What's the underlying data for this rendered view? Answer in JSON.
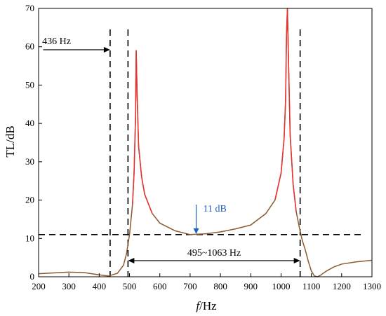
{
  "chart_data": {
    "type": "line",
    "xlabel_italic": "f",
    "xlabel_rest": "/Hz",
    "ylabel": "TL/dB",
    "xlim": [
      200,
      1300
    ],
    "ylim": [
      0,
      70
    ],
    "xticks": [
      200,
      300,
      400,
      500,
      600,
      700,
      800,
      900,
      1000,
      1100,
      1200,
      1300
    ],
    "yticks": [
      0,
      10,
      20,
      30,
      40,
      50,
      60,
      70
    ],
    "grid": false,
    "series": [
      {
        "color": "#8B5A2B",
        "peak_color": "#e8312f",
        "x": [
          200,
          250,
          300,
          350,
          400,
          430,
          460,
          480,
          490,
          500,
          510,
          515,
          520,
          522,
          525,
          530,
          540,
          550,
          575,
          600,
          650,
          700,
          750,
          800,
          850,
          900,
          950,
          980,
          1000,
          1010,
          1015,
          1018,
          1021,
          1025,
          1030,
          1040,
          1050,
          1060,
          1070,
          1080,
          1090,
          1100,
          1110,
          1120,
          1130,
          1150,
          1175,
          1200,
          1250,
          1300
        ],
        "y": [
          0.8,
          1.0,
          1.2,
          1.1,
          0.5,
          0.2,
          0.9,
          3.0,
          6.0,
          11.0,
          19.0,
          27.0,
          42.0,
          59.0,
          48.0,
          34.0,
          26.0,
          21.5,
          16.5,
          14.0,
          12.0,
          11.0,
          11.2,
          11.7,
          12.5,
          13.5,
          16.5,
          20.0,
          27.0,
          36.0,
          46.0,
          63.0,
          70.0,
          55.0,
          37.0,
          24.0,
          17.0,
          13.0,
          9.5,
          7.0,
          4.0,
          1.5,
          0.2,
          0.0,
          0.4,
          1.5,
          2.6,
          3.3,
          3.9,
          4.3
        ]
      }
    ],
    "hlines": [
      11
    ],
    "vlines": [
      436,
      495,
      1063
    ],
    "annotations": {
      "freq_436": "436 Hz",
      "min_11db": "11 dB",
      "band": "495~1063 Hz"
    }
  }
}
